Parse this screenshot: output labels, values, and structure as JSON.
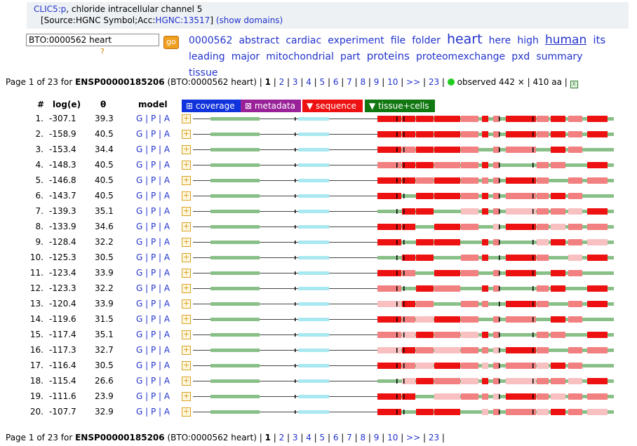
{
  "header": {
    "gene_link": "CLIC5:p",
    "gene_desc": ", chloride intracellular channel 5",
    "source_prefix": "[Source:HGNC Symbol;Acc:",
    "source_acc": "HGNC:13517",
    "source_suffix": "]",
    "show_domains": "(show domains)"
  },
  "search": {
    "value": "BTO:0000562 heart",
    "go_label": "go",
    "help": "?"
  },
  "keywords": [
    {
      "text": "0000562",
      "size": 14
    },
    {
      "text": "abstract",
      "size": 14
    },
    {
      "text": "cardiac",
      "size": 14
    },
    {
      "text": "experiment",
      "size": 14
    },
    {
      "text": "file",
      "size": 14
    },
    {
      "text": "folder",
      "size": 14
    },
    {
      "text": "heart",
      "size": 19
    },
    {
      "text": "here",
      "size": 14
    },
    {
      "text": "high",
      "size": 14
    },
    {
      "text": "human",
      "size": 17,
      "underline": true
    },
    {
      "text": "its",
      "size": 15
    },
    {
      "text": "leading",
      "size": 14
    },
    {
      "text": "major",
      "size": 14
    },
    {
      "text": "mitochondrial",
      "size": 14
    },
    {
      "text": "part",
      "size": 14
    },
    {
      "text": "proteins",
      "size": 15
    },
    {
      "text": "proteomexchange",
      "size": 14
    },
    {
      "text": "pxd",
      "size": 14
    },
    {
      "text": "summary",
      "size": 14
    },
    {
      "text": "tissue",
      "size": 14
    }
  ],
  "pager": {
    "prefix": "Page 1 of 23 for ",
    "protein": "ENSP00000185206",
    "query": " (BTO:0000562 heart) | ",
    "current": "1",
    "pages": [
      "2",
      "3",
      "4",
      "5",
      "6",
      "7",
      "8",
      "9",
      "10",
      ">>",
      "23"
    ],
    "observed": " observed 442 × | 410 aa | "
  },
  "columns": {
    "num": "#",
    "log": "log(e)",
    "theta": "θ",
    "model": "model"
  },
  "buttons": [
    {
      "label": "⊞ coverage",
      "color": "#1133dd"
    },
    {
      "label": "⊠ metadata",
      "color": "#992299"
    },
    {
      "label": "▼ sequence",
      "color": "#ee1111"
    },
    {
      "label": "▼ tissue+cells",
      "color": "#117711"
    }
  ],
  "model_links": "G | P | A",
  "rows": [
    {
      "n": "1.",
      "log": "-307.1",
      "theta": "39.3"
    },
    {
      "n": "2.",
      "log": "-158.9",
      "theta": "40.5"
    },
    {
      "n": "3.",
      "log": "-153.4",
      "theta": "34.4"
    },
    {
      "n": "4.",
      "log": "-148.3",
      "theta": "40.5"
    },
    {
      "n": "5.",
      "log": "-146.8",
      "theta": "40.5"
    },
    {
      "n": "6.",
      "log": "-143.7",
      "theta": "40.5"
    },
    {
      "n": "7.",
      "log": "-139.3",
      "theta": "35.1"
    },
    {
      "n": "8.",
      "log": "-133.9",
      "theta": "34.6"
    },
    {
      "n": "9.",
      "log": "-128.4",
      "theta": "32.2"
    },
    {
      "n": "10.",
      "log": "-125.3",
      "theta": "30.5"
    },
    {
      "n": "11.",
      "log": "-123.4",
      "theta": "33.9"
    },
    {
      "n": "12.",
      "log": "-123.3",
      "theta": "32.2"
    },
    {
      "n": "13.",
      "log": "-120.4",
      "theta": "33.9"
    },
    {
      "n": "14.",
      "log": "-119.6",
      "theta": "31.5"
    },
    {
      "n": "15.",
      "log": "-117.4",
      "theta": "35.1"
    },
    {
      "n": "16.",
      "log": "-117.3",
      "theta": "32.7"
    },
    {
      "n": "17.",
      "log": "-116.4",
      "theta": "30.5"
    },
    {
      "n": "18.",
      "log": "-115.4",
      "theta": "26.6"
    },
    {
      "n": "19.",
      "log": "-111.6",
      "theta": "23.9"
    },
    {
      "n": "20.",
      "log": "-107.7",
      "theta": "32.9"
    }
  ],
  "colors": {
    "obs_high": "#ee1111",
    "obs_mid": "#f28080",
    "obs_low": "#f8c0c0",
    "domain": "#88c088",
    "signal": "#a8e8f0",
    "line": "#444444"
  }
}
